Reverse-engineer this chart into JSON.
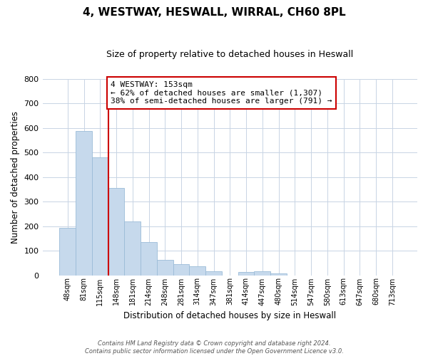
{
  "title": "4, WESTWAY, HESWALL, WIRRAL, CH60 8PL",
  "subtitle": "Size of property relative to detached houses in Heswall",
  "xlabel": "Distribution of detached houses by size in Heswall",
  "ylabel": "Number of detached properties",
  "bin_labels": [
    "48sqm",
    "81sqm",
    "115sqm",
    "148sqm",
    "181sqm",
    "214sqm",
    "248sqm",
    "281sqm",
    "314sqm",
    "347sqm",
    "381sqm",
    "414sqm",
    "447sqm",
    "480sqm",
    "514sqm",
    "547sqm",
    "580sqm",
    "613sqm",
    "647sqm",
    "680sqm",
    "713sqm"
  ],
  "bar_values": [
    193,
    588,
    480,
    356,
    218,
    134,
    61,
    44,
    37,
    16,
    0,
    12,
    16,
    7,
    0,
    0,
    0,
    0,
    0,
    0,
    0
  ],
  "bar_color": "#c6d9ec",
  "bar_edge_color": "#9bbcd8",
  "vline_color": "#cc0000",
  "annotation_title": "4 WESTWAY: 153sqm",
  "annotation_line1": "← 62% of detached houses are smaller (1,307)",
  "annotation_line2": "38% of semi-detached houses are larger (791) →",
  "annotation_box_edgecolor": "#cc0000",
  "annotation_bg": "#ffffff",
  "footer_line1": "Contains HM Land Registry data © Crown copyright and database right 2024.",
  "footer_line2": "Contains public sector information licensed under the Open Government Licence v3.0.",
  "ylim": [
    0,
    800
  ],
  "yticks": [
    0,
    100,
    200,
    300,
    400,
    500,
    600,
    700,
    800
  ],
  "background_color": "#ffffff",
  "grid_color": "#c8d4e4"
}
